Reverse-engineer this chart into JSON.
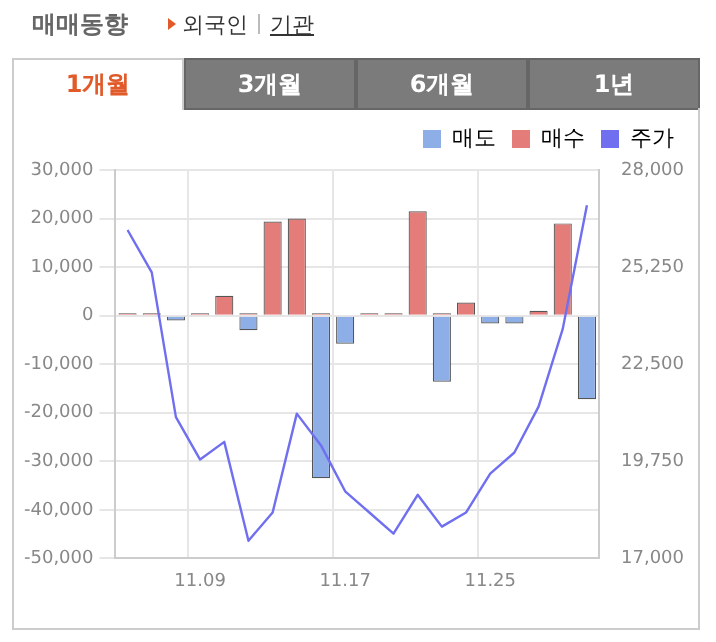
{
  "chart_data": {
    "type": "bar",
    "title": "매매동향",
    "annotations": [
      "외국인",
      "기관",
      "1개월",
      "3개월",
      "6개월",
      "1년"
    ],
    "categories": [
      null,
      null,
      null,
      "11.09",
      null,
      null,
      null,
      null,
      null,
      "11.17",
      null,
      null,
      null,
      null,
      null,
      "11.25",
      null,
      null,
      null,
      null
    ],
    "series": [
      {
        "name": "매도",
        "color": "#8eaee8",
        "values": [
          null,
          null,
          -1000,
          null,
          null,
          -3000,
          null,
          null,
          -33500,
          -5800,
          null,
          null,
          null,
          -13600,
          null,
          -1600,
          -1600,
          null,
          null,
          -17200
        ]
      },
      {
        "name": "매수",
        "color": "#e47c7a",
        "values": [
          500,
          500,
          null,
          500,
          4100,
          500,
          19400,
          20000,
          500,
          null,
          500,
          500,
          21500,
          500,
          2700,
          null,
          null,
          1000,
          19000,
          null
        ]
      },
      {
        "name": "주가",
        "type": "line",
        "axis": "y2",
        "color": "#6f6ff0",
        "values": [
          26300,
          25100,
          21000,
          19800,
          20300,
          17500,
          18300,
          21100,
          20200,
          18900,
          18300,
          17700,
          18800,
          17900,
          18300,
          19400,
          20000,
          21300,
          23500,
          27000
        ]
      }
    ],
    "ylim": [
      -50000,
      30000
    ],
    "yticks": [
      {
        "value": -50000,
        "label": "-50,000"
      },
      {
        "value": -40000,
        "label": "-40,000"
      },
      {
        "value": -30000,
        "label": "-30,000"
      },
      {
        "value": -20000,
        "label": "-20,000"
      },
      {
        "value": -10000,
        "label": "-10,000"
      },
      0,
      {
        "value": 10000,
        "label": "10,000"
      },
      {
        "value": 20000,
        "label": "20,000"
      },
      {
        "value": 30000,
        "label": "30,000"
      }
    ],
    "y2lim": [
      17000,
      28000
    ],
    "y2ticks": [
      {
        "value": 17000,
        "label": "17,000"
      },
      {
        "value": 19750,
        "label": "19,750"
      },
      {
        "value": 22500,
        "label": "22,500"
      },
      {
        "value": 25250,
        "label": "25,250"
      },
      {
        "value": 28000,
        "label": "28,000"
      }
    ],
    "grid": true,
    "legend": "top right",
    "marker": "none"
  }
}
